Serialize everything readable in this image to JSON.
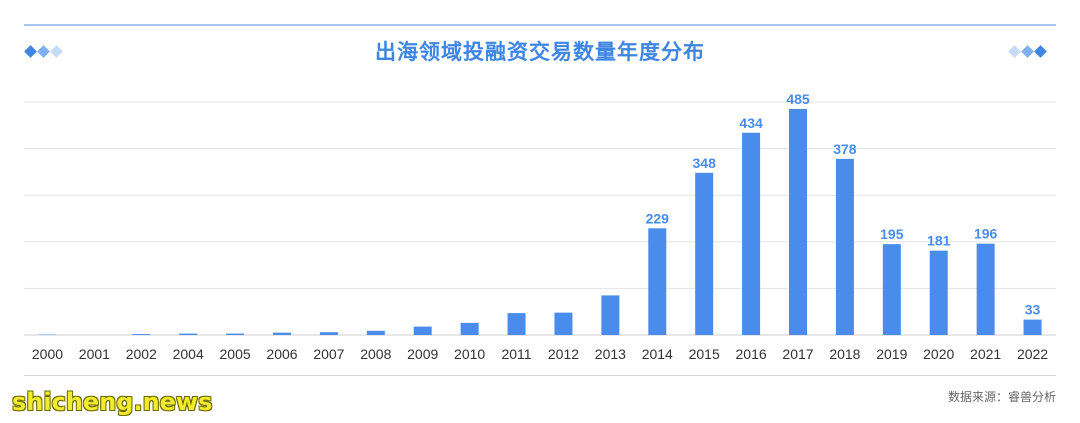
{
  "title": "出海领域投融资交易数量年度分布",
  "source": "数据来源：睿兽分析",
  "watermark": "shicheng.news",
  "colors": {
    "bar": "#4a8cec",
    "label": "#4a8cec",
    "title": "#3f86e3",
    "grid": "#e3e3e3",
    "diamond_dark": "#3f86e3",
    "diamond_mid": "#7fb0f0",
    "diamond_light": "#c5dbf8"
  },
  "chart_data": {
    "type": "bar",
    "title": "出海领域投融资交易数量年度分布",
    "xlabel": "",
    "ylabel": "",
    "ylim": [
      0,
      500
    ],
    "grid": true,
    "categories": [
      "2000",
      "2001",
      "2002",
      "2004",
      "2005",
      "2006",
      "2007",
      "2008",
      "2009",
      "2010",
      "2011",
      "2012",
      "2013",
      "2014",
      "2015",
      "2016",
      "2017",
      "2018",
      "2019",
      "2020",
      "2021",
      "2022"
    ],
    "values": [
      1,
      0,
      2,
      3,
      3,
      5,
      6,
      9,
      18,
      26,
      47,
      48,
      85,
      229,
      348,
      434,
      485,
      378,
      195,
      181,
      196,
      33
    ],
    "data_labels": [
      "",
      "",
      "",
      "",
      "",
      "",
      "",
      "",
      "",
      "",
      "",
      "",
      "",
      "229",
      "348",
      "434",
      "485",
      "378",
      "195",
      "181",
      "196",
      "33"
    ]
  }
}
